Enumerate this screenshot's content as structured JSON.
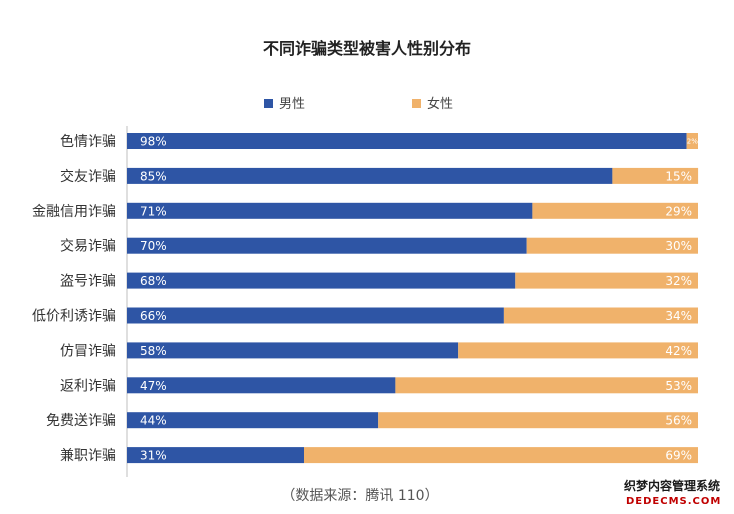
{
  "chart_data": {
    "type": "bar",
    "orientation": "horizontal",
    "stacked": "percent",
    "title": "不同诈骗类型被害人性别分布",
    "categories": [
      "色情诈骗",
      "交友诈骗",
      "金融信用诈骗",
      "交易诈骗",
      "盗号诈骗",
      "低价利诱诈骗",
      "仿冒诈骗",
      "返利诈骗",
      "免费送诈骗",
      "兼职诈骗"
    ],
    "series": [
      {
        "name": "男性",
        "color": "#2e55a5",
        "values": [
          98,
          85,
          71,
          70,
          68,
          66,
          58,
          47,
          44,
          31
        ],
        "labels": [
          "98%",
          "85%",
          "71%",
          "70%",
          "68%",
          "66%",
          "58%",
          "47%",
          "44%",
          "31%"
        ]
      },
      {
        "name": "女性",
        "color": "#f0b26b",
        "values": [
          2,
          15,
          29,
          30,
          32,
          34,
          42,
          53,
          56,
          69
        ],
        "labels": [
          "2%",
          "15%",
          "29%",
          "30%",
          "32%",
          "34%",
          "42%",
          "53%",
          "56%",
          "69%"
        ]
      }
    ],
    "xlim": [
      0,
      100
    ],
    "legend_position": "top",
    "grid": false
  },
  "footer": {
    "source": "（数据来源：腾讯 110）"
  },
  "watermark": {
    "line1": "织梦内容管理系统",
    "line2": "DEDECMS.COM"
  }
}
